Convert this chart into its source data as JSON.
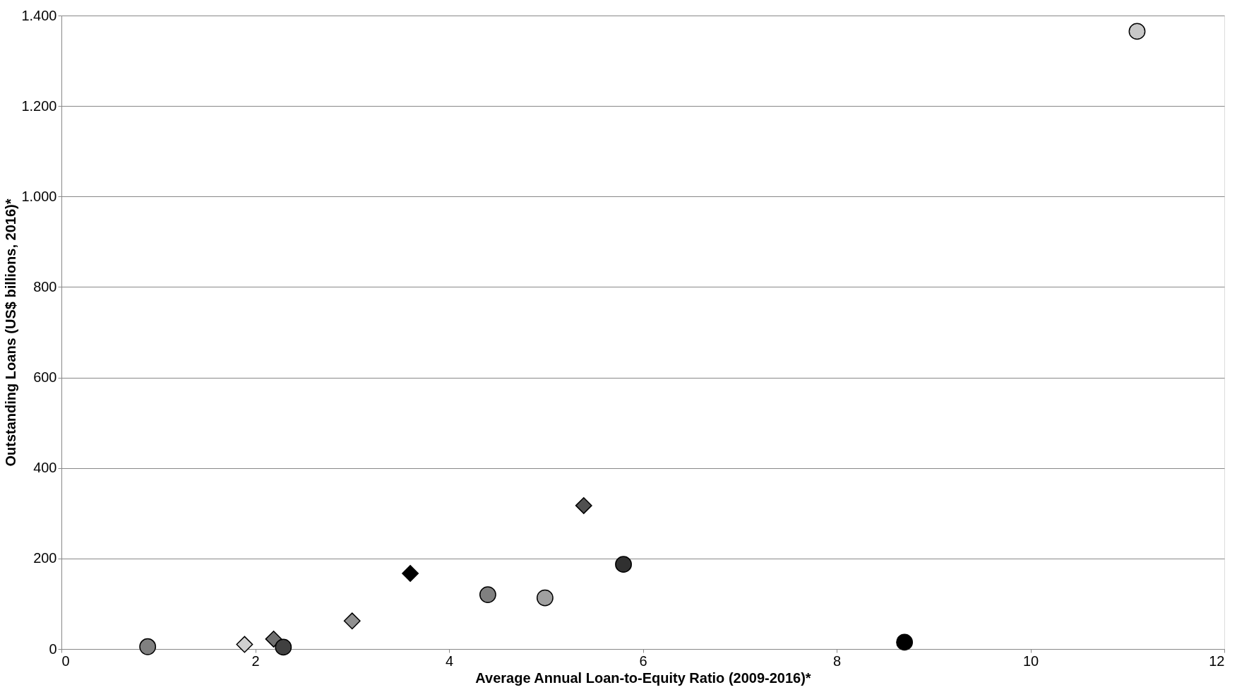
{
  "chart_data": {
    "type": "scatter",
    "xlabel": "Average Annual Loan-to-Equity Ratio (2009-2016)*",
    "ylabel": "Outstanding Loans (US$ billions, 2016)*",
    "xlim": [
      0,
      12
    ],
    "xticks": [
      0,
      2,
      4,
      6,
      8,
      10,
      12
    ],
    "ylim": [
      0,
      1400
    ],
    "yticks": [
      0,
      200,
      400,
      600,
      800,
      {
        "value": 1000,
        "label": "1.000"
      },
      {
        "value": 1200,
        "label": "1.200"
      },
      {
        "value": 1400,
        "label": "1.400"
      }
    ],
    "grid": "y",
    "series": [
      {
        "color": "#808080",
        "marker": "circle",
        "x": [
          0.89
        ],
        "values": [
          5
        ]
      },
      {
        "color": "#d0d0d0",
        "marker": "diamond",
        "x": [
          1.89
        ],
        "values": [
          10
        ]
      },
      {
        "color": "#707070",
        "marker": "diamond",
        "x": [
          2.19
        ],
        "values": [
          22
        ]
      },
      {
        "color": "#404040",
        "marker": "circle",
        "x": [
          2.29
        ],
        "values": [
          4
        ]
      },
      {
        "color": "#909090",
        "marker": "diamond",
        "x": [
          3.0
        ],
        "values": [
          62
        ]
      },
      {
        "color": "#000000",
        "marker": "diamond",
        "x": [
          3.6
        ],
        "values": [
          167
        ]
      },
      {
        "color": "#808080",
        "marker": "circle",
        "x": [
          4.4
        ],
        "values": [
          120
        ]
      },
      {
        "color": "#a0a0a0",
        "marker": "circle",
        "x": [
          4.99
        ],
        "values": [
          113
        ]
      },
      {
        "color": "#505050",
        "marker": "diamond",
        "x": [
          5.39
        ],
        "values": [
          317
        ]
      },
      {
        "color": "#303030",
        "marker": "circle",
        "x": [
          5.8
        ],
        "values": [
          187
        ]
      },
      {
        "color": "#000000",
        "marker": "circle",
        "x": [
          8.7
        ],
        "values": [
          15
        ]
      },
      {
        "color": "#c8c8c8",
        "marker": "circle",
        "x": [
          11.1
        ],
        "values": [
          1365
        ]
      }
    ]
  }
}
